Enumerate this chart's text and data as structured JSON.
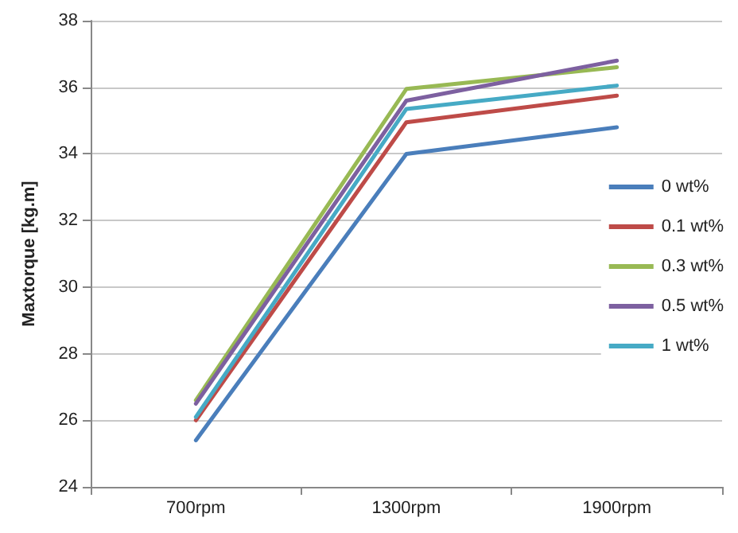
{
  "chart_data": {
    "type": "line",
    "ylabel": "Maxtorque [kg.m]",
    "categories": [
      "700rpm",
      "1300rpm",
      "1900rpm"
    ],
    "series": [
      {
        "name": "0 wt%",
        "color": "#4a7ebb",
        "values": [
          25.4,
          34.0,
          34.8
        ]
      },
      {
        "name": "0.1 wt%",
        "color": "#be4b48",
        "values": [
          26.0,
          34.95,
          35.75
        ]
      },
      {
        "name": "0.3 wt%",
        "color": "#98b954",
        "values": [
          26.6,
          35.95,
          36.6
        ]
      },
      {
        "name": "0.5 wt%",
        "color": "#7d60a0",
        "values": [
          26.5,
          35.6,
          36.8
        ]
      },
      {
        "name": "1 wt%",
        "color": "#46aac5",
        "values": [
          26.1,
          35.35,
          36.05
        ]
      }
    ],
    "ylim": [
      24,
      38
    ],
    "yticks": [
      24,
      26,
      28,
      30,
      32,
      34,
      36,
      38
    ],
    "grid": "y",
    "legend": "right",
    "marker": "none",
    "line_style": "solid"
  }
}
